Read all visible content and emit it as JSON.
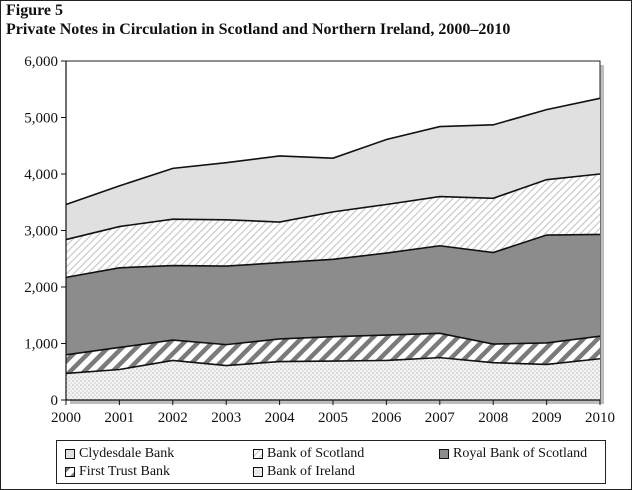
{
  "figure": {
    "label": "Figure 5",
    "title": "Private Notes in Circulation in Scotland and Northern Ireland, 2000–2010"
  },
  "chart_data": {
    "type": "area",
    "stacked": true,
    "title": "Private Notes in Circulation in Scotland and Northern Ireland, 2000–2010",
    "xlabel": "",
    "ylabel": "",
    "x": [
      "2000",
      "2001",
      "2002",
      "2003",
      "2004",
      "2005",
      "2006",
      "2007",
      "2008",
      "2009",
      "2010"
    ],
    "ylim": [
      0,
      6000
    ],
    "yticks": [
      "0",
      "1,000",
      "2,000",
      "3,000",
      "4,000",
      "5,000",
      "6,000"
    ],
    "grid": false,
    "legend_position": "bottom",
    "series": [
      {
        "name": "Bank of Ireland",
        "color": "#f2f2f2",
        "pattern": "dots",
        "values": [
          470,
          540,
          700,
          610,
          680,
          690,
          700,
          750,
          660,
          630,
          730
        ]
      },
      {
        "name": "First Trust Bank",
        "color": "#ffffff",
        "pattern": "diagonal-dark",
        "values": [
          330,
          390,
          360,
          370,
          400,
          430,
          450,
          430,
          330,
          380,
          400
        ]
      },
      {
        "name": "Royal Bank of Scotland",
        "color": "#8c8c8c",
        "pattern": "solid",
        "values": [
          1370,
          1410,
          1320,
          1390,
          1350,
          1370,
          1450,
          1550,
          1620,
          1910,
          1800
        ]
      },
      {
        "name": "Bank of Scotland",
        "color": "#ffffff",
        "pattern": "diagonal-light",
        "values": [
          670,
          730,
          820,
          820,
          720,
          840,
          860,
          870,
          960,
          980,
          1070
        ]
      },
      {
        "name": "Clydesdale Bank",
        "color": "#e0e0e0",
        "pattern": "solid",
        "values": [
          620,
          720,
          900,
          1010,
          1170,
          950,
          1150,
          1240,
          1300,
          1240,
          1340
        ]
      }
    ]
  },
  "legend": {
    "items": [
      {
        "label": "Clydesdale Bank",
        "swatch": "clyd"
      },
      {
        "label": "Bank of Scotland",
        "swatch": "bos"
      },
      {
        "label": "Royal Bank of Scotland",
        "swatch": "rbs"
      },
      {
        "label": "First Trust Bank",
        "swatch": "ftb"
      },
      {
        "label": "Bank of Ireland",
        "swatch": "boi"
      }
    ]
  },
  "colors": {
    "plot_border": "#222222",
    "plot_shadow": "#bdbdbd",
    "outline": "#111111"
  }
}
